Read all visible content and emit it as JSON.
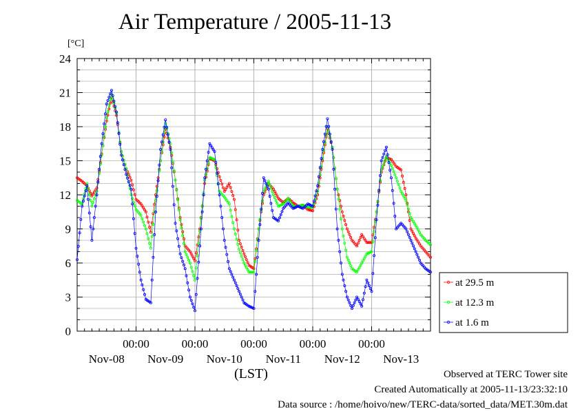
{
  "chart_data": {
    "type": "line",
    "title": "Air Temperature / 2005-11-13",
    "ylabel": "[°C]",
    "xlabel": "(LST)",
    "ylim": [
      0,
      24
    ],
    "yticks": [
      "0",
      "3",
      "6",
      "9",
      "12",
      "15",
      "18",
      "21",
      "24"
    ],
    "xlim_days": [
      0,
      6
    ],
    "x_tick_time_labels": [
      "00:00",
      "00:00",
      "00:00",
      "00:00",
      "00:00"
    ],
    "x_day_labels": [
      "Nov-08",
      "Nov-09",
      "Nov-10",
      "Nov-11",
      "Nov-12",
      "Nov-13"
    ],
    "grid": true,
    "legend_placement": "right",
    "footer": [
      "Observed at TERC Tower site",
      "Created Automatically at 2005-11-13/23:32:10",
      "Data source : /home/hoivo/new/TERC-data/sorted_data/MET.30m.dat"
    ],
    "x": [
      "Nov-08 00:00",
      "Nov-08 02:00",
      "Nov-08 04:00",
      "Nov-08 06:00",
      "Nov-08 08:00",
      "Nov-08 10:00",
      "Nov-08 12:00",
      "Nov-08 14:00",
      "Nov-08 16:00",
      "Nov-08 18:00",
      "Nov-08 20:00",
      "Nov-08 22:00",
      "Nov-09 00:00",
      "Nov-09 02:00",
      "Nov-09 04:00",
      "Nov-09 06:00",
      "Nov-09 08:00",
      "Nov-09 10:00",
      "Nov-09 12:00",
      "Nov-09 14:00",
      "Nov-09 16:00",
      "Nov-09 18:00",
      "Nov-09 20:00",
      "Nov-09 22:00",
      "Nov-10 00:00",
      "Nov-10 02:00",
      "Nov-10 04:00",
      "Nov-10 06:00",
      "Nov-10 08:00",
      "Nov-10 10:00",
      "Nov-10 12:00",
      "Nov-10 14:00",
      "Nov-10 16:00",
      "Nov-10 18:00",
      "Nov-10 20:00",
      "Nov-10 22:00",
      "Nov-11 00:00",
      "Nov-11 02:00",
      "Nov-11 04:00",
      "Nov-11 06:00",
      "Nov-11 08:00",
      "Nov-11 10:00",
      "Nov-11 12:00",
      "Nov-11 14:00",
      "Nov-11 16:00",
      "Nov-11 18:00",
      "Nov-11 20:00",
      "Nov-11 22:00",
      "Nov-12 00:00",
      "Nov-12 02:00",
      "Nov-12 04:00",
      "Nov-12 06:00",
      "Nov-12 08:00",
      "Nov-12 10:00",
      "Nov-12 12:00",
      "Nov-12 14:00",
      "Nov-12 16:00",
      "Nov-12 18:00",
      "Nov-12 20:00",
      "Nov-12 22:00",
      "Nov-13 00:00",
      "Nov-13 02:00",
      "Nov-13 04:00",
      "Nov-13 06:00",
      "Nov-13 08:00",
      "Nov-13 10:00",
      "Nov-13 12:00",
      "Nov-13 14:00",
      "Nov-13 16:00",
      "Nov-13 18:00",
      "Nov-13 20:00",
      "Nov-13 22:00",
      "Nov-13 24:00"
    ],
    "series": [
      {
        "name": "at 29.5 m",
        "color": "#ff0000",
        "values": [
          13.5,
          13.2,
          12.8,
          11.9,
          12.6,
          15.6,
          18.5,
          20.6,
          19.0,
          15.8,
          14.3,
          13.3,
          11.6,
          11.2,
          10.5,
          8.7,
          12.0,
          15.0,
          17.8,
          16.2,
          13.3,
          10.0,
          7.5,
          7.0,
          6.2,
          9.0,
          13.0,
          15.2,
          15.0,
          13.6,
          12.3,
          13.0,
          11.6,
          8.0,
          6.8,
          5.8,
          5.5,
          9.0,
          12.0,
          13.0,
          12.5,
          11.7,
          11.3,
          11.7,
          11.3,
          11.0,
          11.1,
          10.7,
          10.6,
          12.0,
          15.0,
          17.8,
          16.2,
          12.5,
          10.5,
          9.0,
          8.0,
          7.5,
          8.5,
          7.8,
          7.8,
          10.5,
          14.0,
          15.3,
          15.1,
          14.5,
          14.2,
          12.0,
          9.0,
          8.2,
          7.5,
          7.0,
          6.5
        ]
      },
      {
        "name": "at 12.3 m",
        "color": "#00ff00",
        "values": [
          11.5,
          11.2,
          13.0,
          11.0,
          12.3,
          15.5,
          18.8,
          20.9,
          19.2,
          15.8,
          14.3,
          12.0,
          10.7,
          10.2,
          9.0,
          7.3,
          11.5,
          15.0,
          18.3,
          16.5,
          13.3,
          9.8,
          7.0,
          6.0,
          4.5,
          8.8,
          13.3,
          15.3,
          15.1,
          12.3,
          11.8,
          11.2,
          9.0,
          7.2,
          6.0,
          5.2,
          5.2,
          9.0,
          12.3,
          13.2,
          12.0,
          11.0,
          11.2,
          11.7,
          11.0,
          11.0,
          11.1,
          10.9,
          10.9,
          12.3,
          15.2,
          18.0,
          16.2,
          12.5,
          9.0,
          6.5,
          5.5,
          5.2,
          6.0,
          6.8,
          7.0,
          10.5,
          14.2,
          15.4,
          14.6,
          13.5,
          12.3,
          11.5,
          10.0,
          9.3,
          8.5,
          8.0,
          7.6
        ]
      },
      {
        "name": "at 1.6 m",
        "color": "#0000ff",
        "values": [
          6.3,
          11.0,
          12.8,
          8.0,
          12.0,
          16.5,
          20.0,
          21.2,
          19.3,
          15.5,
          13.8,
          12.5,
          7.3,
          4.5,
          2.8,
          2.5,
          10.5,
          16.0,
          18.6,
          16.0,
          9.5,
          6.8,
          5.5,
          3.0,
          1.8,
          7.5,
          13.5,
          16.5,
          15.8,
          12.0,
          8.0,
          5.5,
          4.5,
          3.5,
          2.5,
          2.2,
          2.0,
          8.0,
          13.5,
          12.5,
          10.0,
          9.7,
          10.8,
          11.3,
          10.8,
          11.0,
          10.8,
          11.2,
          11.0,
          12.8,
          16.0,
          18.7,
          16.0,
          9.0,
          5.0,
          3.0,
          2.0,
          3.0,
          2.2,
          4.5,
          3.5,
          9.8,
          15.0,
          16.2,
          13.5,
          9.0,
          9.5,
          9.0,
          8.0,
          7.0,
          6.0,
          5.5,
          5.2
        ]
      }
    ]
  }
}
